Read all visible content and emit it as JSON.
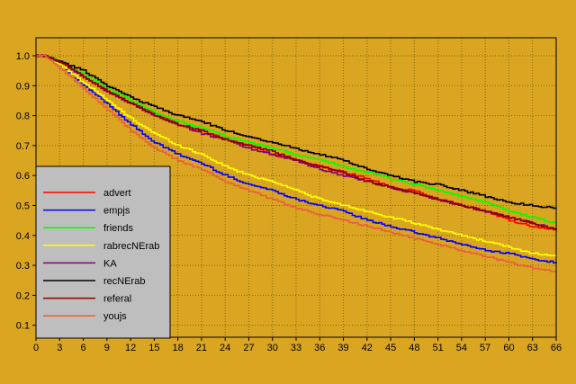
{
  "colors": {
    "background": "#DAA520",
    "grid": "#7a6a1a",
    "legend_bg": "#BEBEBE"
  },
  "chart_data": {
    "type": "line",
    "title": "",
    "xlabel": "",
    "ylabel": "",
    "xlim": [
      0,
      66
    ],
    "ylim": [
      0.06,
      1.06
    ],
    "xticks": [
      0,
      3,
      6,
      9,
      12,
      15,
      18,
      21,
      24,
      27,
      30,
      33,
      36,
      39,
      42,
      45,
      48,
      51,
      54,
      57,
      60,
      63,
      66
    ],
    "yticks": [
      0.1,
      0.2,
      0.3,
      0.4,
      0.5,
      0.6,
      0.7,
      0.8,
      0.9,
      1.0
    ],
    "ytick_labels": [
      "0.1",
      "0.2",
      "0.3",
      "0.4",
      "0.5",
      "0.6",
      "0.7",
      "0.8",
      "0.9",
      "1.0"
    ],
    "grid": true,
    "legend_position": "left",
    "series": [
      {
        "name": "advert",
        "color": "#FF0000",
        "x": [
          0,
          1,
          3,
          6,
          9,
          12,
          15,
          18,
          21,
          24,
          27,
          30,
          33,
          36,
          39,
          42,
          45,
          48,
          51,
          54,
          57,
          60,
          63,
          66
        ],
        "values": [
          1.0,
          1.0,
          0.98,
          0.93,
          0.88,
          0.84,
          0.81,
          0.77,
          0.75,
          0.72,
          0.7,
          0.67,
          0.65,
          0.63,
          0.61,
          0.59,
          0.56,
          0.55,
          0.52,
          0.5,
          0.48,
          0.45,
          0.43,
          0.42
        ]
      },
      {
        "name": "empjs",
        "color": "#0000FF",
        "x": [
          0,
          1,
          3,
          6,
          9,
          12,
          15,
          18,
          21,
          24,
          27,
          30,
          33,
          36,
          39,
          42,
          45,
          48,
          51,
          54,
          57,
          60,
          63,
          66
        ],
        "values": [
          1.0,
          1.0,
          0.97,
          0.9,
          0.84,
          0.77,
          0.71,
          0.67,
          0.64,
          0.6,
          0.57,
          0.55,
          0.52,
          0.5,
          0.48,
          0.45,
          0.43,
          0.41,
          0.39,
          0.37,
          0.35,
          0.34,
          0.32,
          0.31
        ]
      },
      {
        "name": "friends",
        "color": "#00FF00",
        "x": [
          0,
          1,
          3,
          6,
          9,
          12,
          15,
          18,
          21,
          24,
          27,
          30,
          33,
          36,
          39,
          42,
          45,
          48,
          51,
          54,
          57,
          60,
          63,
          66
        ],
        "values": [
          1.0,
          1.0,
          0.98,
          0.94,
          0.89,
          0.85,
          0.81,
          0.78,
          0.76,
          0.73,
          0.71,
          0.69,
          0.67,
          0.65,
          0.63,
          0.61,
          0.59,
          0.57,
          0.55,
          0.53,
          0.51,
          0.48,
          0.46,
          0.44
        ]
      },
      {
        "name": "rabrecNErab",
        "color": "#FFFF00",
        "x": [
          0,
          1,
          3,
          6,
          9,
          12,
          15,
          18,
          21,
          24,
          27,
          30,
          33,
          36,
          39,
          42,
          45,
          48,
          51,
          54,
          57,
          60,
          63,
          66
        ],
        "values": [
          1.0,
          1.0,
          0.97,
          0.91,
          0.85,
          0.79,
          0.74,
          0.7,
          0.67,
          0.63,
          0.6,
          0.58,
          0.55,
          0.52,
          0.5,
          0.48,
          0.46,
          0.44,
          0.42,
          0.4,
          0.38,
          0.36,
          0.34,
          0.33
        ]
      },
      {
        "name": "KA",
        "color": "#800080",
        "x": [
          0,
          1,
          3,
          6,
          9,
          12,
          15,
          18,
          21,
          24,
          27,
          30,
          33,
          36,
          39,
          42,
          45,
          48,
          51,
          54,
          57,
          60,
          63,
          66
        ],
        "values": [
          1.0,
          1.0,
          0.98,
          0.93,
          0.88,
          0.84,
          0.8,
          0.77,
          0.74,
          0.72,
          0.69,
          0.67,
          0.65,
          0.62,
          0.6,
          0.58,
          0.56,
          0.54,
          0.52,
          0.5,
          0.48,
          0.46,
          0.44,
          0.42
        ]
      },
      {
        "name": "recNErab",
        "color": "#000000",
        "x": [
          0,
          1,
          3,
          6,
          9,
          12,
          15,
          18,
          21,
          24,
          27,
          30,
          33,
          36,
          39,
          42,
          45,
          48,
          51,
          54,
          57,
          60,
          63,
          66
        ],
        "values": [
          1.0,
          1.0,
          0.98,
          0.95,
          0.9,
          0.86,
          0.83,
          0.8,
          0.78,
          0.75,
          0.73,
          0.71,
          0.69,
          0.67,
          0.65,
          0.62,
          0.6,
          0.58,
          0.57,
          0.55,
          0.53,
          0.51,
          0.5,
          0.49
        ]
      },
      {
        "name": "referal",
        "color": "#8B0000",
        "x": [
          0,
          1,
          3,
          6,
          9,
          12,
          15,
          18,
          21,
          24,
          27,
          30,
          33,
          36,
          39,
          42,
          45,
          48,
          51,
          54,
          57,
          60,
          63,
          66
        ],
        "values": [
          1.0,
          1.0,
          0.98,
          0.93,
          0.88,
          0.84,
          0.8,
          0.77,
          0.75,
          0.72,
          0.7,
          0.68,
          0.65,
          0.63,
          0.61,
          0.58,
          0.56,
          0.54,
          0.52,
          0.5,
          0.48,
          0.46,
          0.44,
          0.42
        ]
      },
      {
        "name": "youjs",
        "color": "#E8603C",
        "x": [
          0,
          1,
          3,
          6,
          9,
          12,
          15,
          18,
          21,
          24,
          27,
          30,
          33,
          36,
          39,
          42,
          45,
          48,
          51,
          54,
          57,
          60,
          63,
          66
        ],
        "values": [
          1.0,
          1.0,
          0.96,
          0.89,
          0.82,
          0.75,
          0.69,
          0.65,
          0.62,
          0.58,
          0.55,
          0.52,
          0.49,
          0.47,
          0.45,
          0.43,
          0.41,
          0.39,
          0.37,
          0.35,
          0.33,
          0.31,
          0.29,
          0.28
        ]
      }
    ]
  }
}
